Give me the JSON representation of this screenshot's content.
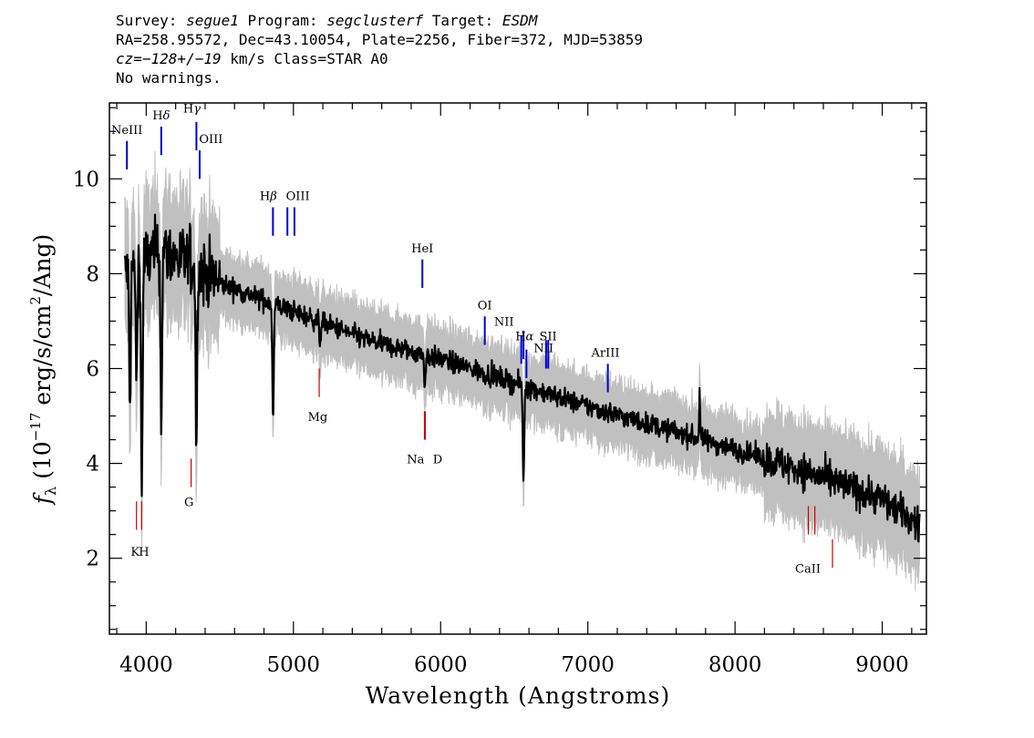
{
  "header": {
    "line1": {
      "survey_label": "Survey: ",
      "survey": "segue1",
      "program_label": " Program: ",
      "program": "segclusterf",
      "target_label": " Target: ",
      "target": "ESDM"
    },
    "line2": "RA=258.95572, Dec=43.10054, Plate=2256, Fiber=372, MJD=53859",
    "line3": {
      "cz": "cz=−128+/−19",
      "rest": " km/s Class=STAR A0"
    },
    "line4": "No warnings."
  },
  "chart_data": {
    "type": "line",
    "title": "",
    "xlabel": "Wavelength (Angstroms)",
    "ylabel_parts": {
      "f": "f",
      "sub": "λ",
      "pre": " (10",
      "exp": "−17",
      "mid": " erg/s/cm",
      "exp2": "2",
      "post": "/Ang)"
    },
    "xlim": [
      3750,
      9300
    ],
    "ylim": [
      0.4,
      11.6
    ],
    "x_ticks": [
      4000,
      5000,
      6000,
      7000,
      8000,
      9000
    ],
    "x_tick_labels": [
      "4000",
      "5000",
      "6000",
      "7000",
      "8000",
      "9000"
    ],
    "y_ticks": [
      2,
      4,
      6,
      8,
      10
    ],
    "y_tick_labels": [
      "2",
      "4",
      "6",
      "8",
      "10"
    ],
    "series": [
      {
        "role": "error",
        "color": "#c0c0c0"
      },
      {
        "role": "flux",
        "color": "#000000"
      }
    ],
    "continuum": [
      [
        3850,
        8.0
      ],
      [
        4000,
        8.3
      ],
      [
        4100,
        8.5
      ],
      [
        4300,
        8.2
      ],
      [
        4500,
        7.8
      ],
      [
        5000,
        7.2
      ],
      [
        5500,
        6.6
      ],
      [
        6000,
        6.2
      ],
      [
        6500,
        5.7
      ],
      [
        7000,
        5.2
      ],
      [
        7500,
        4.75
      ],
      [
        8000,
        4.3
      ],
      [
        8500,
        3.8
      ],
      [
        9000,
        3.25
      ],
      [
        9250,
        2.7
      ]
    ],
    "absorption": [
      {
        "x": 3889,
        "depth": 3.0
      },
      {
        "x": 3934,
        "depth": 2.5
      },
      {
        "x": 3970,
        "depth": 5.0
      },
      {
        "x": 4102,
        "depth": 3.6
      },
      {
        "x": 4341,
        "depth": 3.8
      },
      {
        "x": 4862,
        "depth": 2.4
      },
      {
        "x": 5180,
        "depth": 0.4
      },
      {
        "x": 5893,
        "depth": 0.6
      },
      {
        "x": 6563,
        "depth": 2.0
      }
    ],
    "emission": [
      {
        "x": 7760,
        "height": 1.0
      }
    ],
    "emission_lines": [
      {
        "label": "NeIII",
        "x": 3869,
        "y1": 10.2,
        "y2": 10.8,
        "lx": 3869,
        "ly": 10.95,
        "color": "#0000cc"
      },
      {
        "label": "H",
        "sub": "δ",
        "x": 4102,
        "y1": 10.5,
        "y2": 11.1,
        "lx": 4102,
        "ly": 11.25,
        "color": "#0000cc"
      },
      {
        "label": "H",
        "sub": "γ",
        "x": 4341,
        "y1": 10.6,
        "y2": 11.2,
        "lx": 4310,
        "ly": 11.4,
        "color": "#0000cc"
      },
      {
        "label": "OIII",
        "x": 4363,
        "y1": 10.0,
        "y2": 10.6,
        "lx": 4440,
        "ly": 10.75,
        "color": "#0000cc"
      },
      {
        "label": "H",
        "sub": "β",
        "x": 4861,
        "y1": 8.8,
        "y2": 9.4,
        "lx": 4830,
        "ly": 9.55,
        "color": "#0000cc"
      },
      {
        "label": "OIII",
        "x": 4959,
        "y1": 8.8,
        "y2": 9.4,
        "lx": 5030,
        "ly": 9.55,
        "color": "#0000cc"
      },
      {
        "label": "",
        "x": 5007,
        "y1": 8.8,
        "y2": 9.4,
        "lx": 5007,
        "ly": 9.55,
        "color": "#0000cc"
      },
      {
        "label": "HeI",
        "x": 5876,
        "y1": 7.7,
        "y2": 8.3,
        "lx": 5876,
        "ly": 8.45,
        "color": "#0000cc"
      },
      {
        "label": "OI",
        "x": 6300,
        "y1": 6.5,
        "y2": 7.1,
        "lx": 6300,
        "ly": 7.25,
        "color": "#0000cc"
      },
      {
        "label": "NII",
        "x": 6548,
        "y1": 6.1,
        "y2": 6.7,
        "lx": 6430,
        "ly": 6.9,
        "color": "#0000cc"
      },
      {
        "label": "H",
        "sub": "α",
        "x": 6563,
        "y1": 6.2,
        "y2": 6.8,
        "lx": 6570,
        "ly": 6.6,
        "color": "#0000cc"
      },
      {
        "label": "NII",
        "x": 6583,
        "y1": 5.8,
        "y2": 6.4,
        "lx": 6700,
        "ly": 6.35,
        "color": "#0000cc"
      },
      {
        "label": "SII",
        "x": 6716,
        "y1": 6.0,
        "y2": 6.6,
        "lx": 6730,
        "ly": 6.6,
        "color": "#0000cc"
      },
      {
        "label": "",
        "x": 6731,
        "y1": 6.0,
        "y2": 6.6,
        "lx": 6731,
        "ly": 6.6,
        "color": "#0000cc"
      },
      {
        "label": "ArIII",
        "x": 7136,
        "y1": 5.5,
        "y2": 6.1,
        "lx": 7120,
        "ly": 6.25,
        "color": "#0000cc"
      }
    ],
    "absorption_lines": [
      {
        "label": "K",
        "x": 3934,
        "y1": 2.6,
        "y2": 3.2,
        "lx": 3925,
        "ly": 2.05,
        "color": "#cc0000"
      },
      {
        "label": "H",
        "x": 3969,
        "y1": 2.6,
        "y2": 3.2,
        "lx": 3985,
        "ly": 2.05,
        "color": "#cc0000"
      },
      {
        "label": "G",
        "x": 4305,
        "y1": 3.5,
        "y2": 4.1,
        "lx": 4290,
        "ly": 3.1,
        "color": "#cc0000"
      },
      {
        "label": "Mg",
        "x": 5175,
        "y1": 5.4,
        "y2": 6.0,
        "lx": 5165,
        "ly": 4.9,
        "color": "#cc0000"
      },
      {
        "label": "Na",
        "x": 5890,
        "y1": 4.5,
        "y2": 5.1,
        "lx": 5830,
        "ly": 4.0,
        "color": "#cc0000"
      },
      {
        "label": "D",
        "x": 5896,
        "y1": 4.5,
        "y2": 5.1,
        "lx": 5980,
        "ly": 4.0,
        "color": "#cc0000"
      },
      {
        "label": "CaII",
        "x": 8498,
        "y1": 2.5,
        "y2": 3.1,
        "lx": 8495,
        "ly": 1.7,
        "color": "#cc0000"
      },
      {
        "label": "",
        "x": 8542,
        "y1": 2.5,
        "y2": 3.1,
        "lx": 8542,
        "ly": 1.7,
        "color": "#cc0000"
      },
      {
        "label": "",
        "x": 8662,
        "y1": 1.8,
        "y2": 2.4,
        "lx": 8662,
        "ly": 1.7,
        "color": "#cc0000"
      }
    ]
  }
}
